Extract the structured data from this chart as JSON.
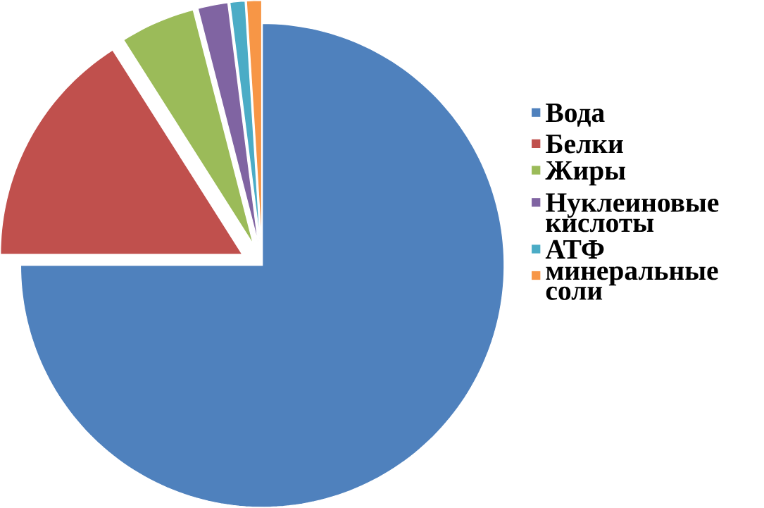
{
  "chart_data": {
    "type": "pie",
    "categories": [
      "Вода",
      "Белки",
      "Жиры",
      "Нуклеиновые кислоты",
      "АТФ",
      "минеральные соли"
    ],
    "values": [
      75,
      16,
      5,
      2,
      1,
      1
    ],
    "colors": [
      "#4f81bd",
      "#c0504d",
      "#9bbb59",
      "#8064a2",
      "#4bacc6",
      "#f79646"
    ],
    "legend": "right"
  }
}
